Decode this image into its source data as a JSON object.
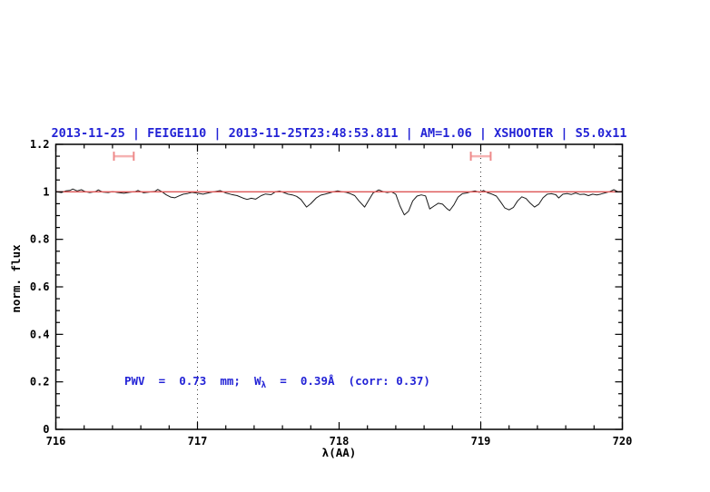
{
  "colors": {
    "title_blue": "#2323d6",
    "continuum_red": "#dd5555",
    "marker_pink": "#ee8a8a",
    "marker_pink_light": "#f5b2b2",
    "spectrum_black": "#1a1a1a"
  },
  "annotation": {
    "prefix": "PWV  =  0.73  mm;  W",
    "subscript": "λ",
    "suffix": "  =  0.39Å  (corr: 0.37)"
  },
  "chart_data": {
    "type": "line",
    "title": "2013-11-25 | FEIGE110 | 2013-11-25T23:48:53.811 | AM=1.06 | XSHOOTER | S5.0x11",
    "xlabel": "λ(AA)",
    "ylabel": "norm. flux",
    "xlim": [
      716,
      720
    ],
    "ylim": [
      0,
      1.2
    ],
    "x_major_step": 1,
    "x_minor_step": 0.2,
    "y_major_step": 0.2,
    "y_minor_step": 0.05,
    "x_tick_labels": [
      "716",
      "717",
      "718",
      "719",
      "720"
    ],
    "y_tick_labels": [
      "0",
      "0.2",
      "0.4",
      "0.6",
      "0.8",
      "1",
      "1.2"
    ],
    "grid": "off",
    "grid_vlines_dotted": [
      717,
      719
    ],
    "continuum_level": 1.0,
    "band_markers": [
      {
        "center": 716.48,
        "half_width": 0.07,
        "flux": 1.15
      },
      {
        "center": 719.0,
        "half_width": 0.07,
        "flux": 1.15
      }
    ],
    "series": [
      {
        "name": "normalized spectrum",
        "points": [
          [
            716.0,
            1.0
          ],
          [
            716.04,
            0.997
          ],
          [
            716.07,
            1.004
          ],
          [
            716.1,
            1.006
          ],
          [
            716.12,
            1.012
          ],
          [
            716.15,
            1.004
          ],
          [
            716.18,
            1.009
          ],
          [
            716.21,
            1.0
          ],
          [
            716.24,
            0.997
          ],
          [
            716.28,
            1.001
          ],
          [
            716.3,
            1.008
          ],
          [
            716.33,
            0.999
          ],
          [
            716.37,
            0.997
          ],
          [
            716.4,
            1.001
          ],
          [
            716.44,
            0.997
          ],
          [
            716.48,
            0.994
          ],
          [
            716.52,
            0.998
          ],
          [
            716.56,
            1.001
          ],
          [
            716.58,
            1.006
          ],
          [
            716.62,
            0.996
          ],
          [
            716.66,
            0.999
          ],
          [
            716.7,
            1.002
          ],
          [
            716.72,
            1.01
          ],
          [
            716.75,
            1.0
          ],
          [
            716.78,
            0.987
          ],
          [
            716.81,
            0.978
          ],
          [
            716.84,
            0.975
          ],
          [
            716.87,
            0.983
          ],
          [
            716.9,
            0.99
          ],
          [
            716.93,
            0.993
          ],
          [
            716.96,
            0.998
          ],
          [
            717.0,
            0.994
          ],
          [
            717.04,
            0.99
          ],
          [
            717.08,
            0.996
          ],
          [
            717.12,
            1.001
          ],
          [
            717.16,
            1.005
          ],
          [
            717.2,
            0.995
          ],
          [
            717.24,
            0.989
          ],
          [
            717.28,
            0.984
          ],
          [
            717.32,
            0.974
          ],
          [
            717.35,
            0.968
          ],
          [
            717.38,
            0.973
          ],
          [
            717.41,
            0.969
          ],
          [
            717.45,
            0.984
          ],
          [
            717.48,
            0.991
          ],
          [
            717.52,
            0.988
          ],
          [
            717.55,
            1.0
          ],
          [
            717.58,
            1.003
          ],
          [
            717.61,
            0.997
          ],
          [
            717.64,
            0.99
          ],
          [
            717.67,
            0.987
          ],
          [
            717.7,
            0.981
          ],
          [
            717.73,
            0.968
          ],
          [
            717.77,
            0.936
          ],
          [
            717.8,
            0.95
          ],
          [
            717.84,
            0.975
          ],
          [
            717.87,
            0.986
          ],
          [
            717.9,
            0.99
          ],
          [
            717.93,
            0.995
          ],
          [
            717.96,
            1.0
          ],
          [
            717.99,
            1.004
          ],
          [
            718.02,
            1.0
          ],
          [
            718.05,
            0.998
          ],
          [
            718.08,
            0.992
          ],
          [
            718.11,
            0.984
          ],
          [
            718.14,
            0.962
          ],
          [
            718.18,
            0.936
          ],
          [
            718.21,
            0.966
          ],
          [
            718.24,
            0.995
          ],
          [
            718.28,
            1.008
          ],
          [
            718.31,
            1.001
          ],
          [
            718.34,
            0.997
          ],
          [
            718.37,
            1.0
          ],
          [
            718.4,
            0.99
          ],
          [
            718.43,
            0.94
          ],
          [
            718.46,
            0.903
          ],
          [
            718.49,
            0.918
          ],
          [
            718.52,
            0.962
          ],
          [
            718.55,
            0.982
          ],
          [
            718.58,
            0.987
          ],
          [
            718.61,
            0.983
          ],
          [
            718.64,
            0.928
          ],
          [
            718.67,
            0.94
          ],
          [
            718.7,
            0.952
          ],
          [
            718.73,
            0.948
          ],
          [
            718.76,
            0.93
          ],
          [
            718.78,
            0.921
          ],
          [
            718.81,
            0.945
          ],
          [
            718.84,
            0.978
          ],
          [
            718.87,
            0.992
          ],
          [
            718.9,
            0.995
          ],
          [
            718.93,
            1.0
          ],
          [
            718.96,
            1.004
          ],
          [
            718.99,
            0.998
          ],
          [
            719.02,
            1.006
          ],
          [
            719.05,
            0.996
          ],
          [
            719.08,
            0.99
          ],
          [
            719.11,
            0.982
          ],
          [
            719.14,
            0.958
          ],
          [
            719.17,
            0.932
          ],
          [
            719.2,
            0.924
          ],
          [
            719.23,
            0.934
          ],
          [
            719.26,
            0.962
          ],
          [
            719.29,
            0.979
          ],
          [
            719.32,
            0.972
          ],
          [
            719.35,
            0.952
          ],
          [
            719.38,
            0.936
          ],
          [
            719.41,
            0.948
          ],
          [
            719.44,
            0.975
          ],
          [
            719.47,
            0.99
          ],
          [
            719.5,
            0.992
          ],
          [
            719.53,
            0.988
          ],
          [
            719.55,
            0.974
          ],
          [
            719.58,
            0.99
          ],
          [
            719.61,
            0.993
          ],
          [
            719.64,
            0.989
          ],
          [
            719.67,
            0.995
          ],
          [
            719.7,
            0.989
          ],
          [
            719.73,
            0.99
          ],
          [
            719.76,
            0.984
          ],
          [
            719.79,
            0.99
          ],
          [
            719.82,
            0.987
          ],
          [
            719.85,
            0.991
          ],
          [
            719.88,
            0.996
          ],
          [
            719.91,
            1.001
          ],
          [
            719.94,
            1.009
          ],
          [
            719.97,
            1.0
          ],
          [
            720.0,
            1.002
          ]
        ]
      }
    ],
    "legend": "none"
  }
}
